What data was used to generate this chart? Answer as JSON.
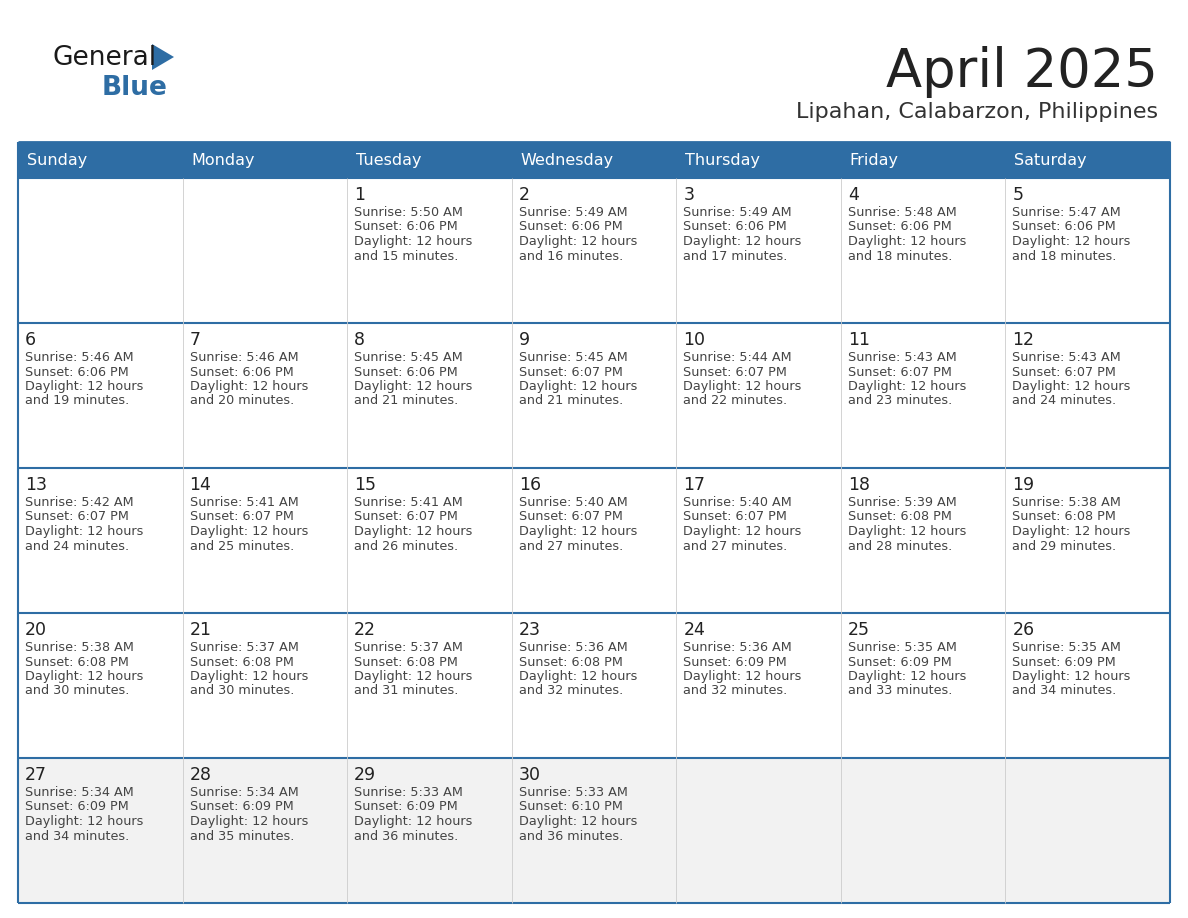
{
  "title": "April 2025",
  "subtitle": "Lipahan, Calabarzon, Philippines",
  "header_bg": "#2E6DA4",
  "header_text_color": "#FFFFFF",
  "cell_bg_white": "#FFFFFF",
  "cell_bg_gray": "#F0F0F0",
  "cell_border_color": "#2E6DA4",
  "day_number_color": "#222222",
  "cell_text_color": "#444444",
  "title_color": "#222222",
  "subtitle_color": "#333333",
  "days_of_week": [
    "Sunday",
    "Monday",
    "Tuesday",
    "Wednesday",
    "Thursday",
    "Friday",
    "Saturday"
  ],
  "row_bg": [
    "#FFFFFF",
    "#FFFFFF",
    "#FFFFFF",
    "#FFFFFF",
    "#F2F2F2"
  ],
  "weeks": [
    [
      {
        "day": "",
        "sunrise": "",
        "sunset": "",
        "daylight": ""
      },
      {
        "day": "",
        "sunrise": "",
        "sunset": "",
        "daylight": ""
      },
      {
        "day": "1",
        "sunrise": "5:50 AM",
        "sunset": "6:06 PM",
        "daylight": "and 15 minutes."
      },
      {
        "day": "2",
        "sunrise": "5:49 AM",
        "sunset": "6:06 PM",
        "daylight": "and 16 minutes."
      },
      {
        "day": "3",
        "sunrise": "5:49 AM",
        "sunset": "6:06 PM",
        "daylight": "and 17 minutes."
      },
      {
        "day": "4",
        "sunrise": "5:48 AM",
        "sunset": "6:06 PM",
        "daylight": "and 18 minutes."
      },
      {
        "day": "5",
        "sunrise": "5:47 AM",
        "sunset": "6:06 PM",
        "daylight": "and 18 minutes."
      }
    ],
    [
      {
        "day": "6",
        "sunrise": "5:46 AM",
        "sunset": "6:06 PM",
        "daylight": "and 19 minutes."
      },
      {
        "day": "7",
        "sunrise": "5:46 AM",
        "sunset": "6:06 PM",
        "daylight": "and 20 minutes."
      },
      {
        "day": "8",
        "sunrise": "5:45 AM",
        "sunset": "6:06 PM",
        "daylight": "and 21 minutes."
      },
      {
        "day": "9",
        "sunrise": "5:45 AM",
        "sunset": "6:07 PM",
        "daylight": "and 21 minutes."
      },
      {
        "day": "10",
        "sunrise": "5:44 AM",
        "sunset": "6:07 PM",
        "daylight": "and 22 minutes."
      },
      {
        "day": "11",
        "sunrise": "5:43 AM",
        "sunset": "6:07 PM",
        "daylight": "and 23 minutes."
      },
      {
        "day": "12",
        "sunrise": "5:43 AM",
        "sunset": "6:07 PM",
        "daylight": "and 24 minutes."
      }
    ],
    [
      {
        "day": "13",
        "sunrise": "5:42 AM",
        "sunset": "6:07 PM",
        "daylight": "and 24 minutes."
      },
      {
        "day": "14",
        "sunrise": "5:41 AM",
        "sunset": "6:07 PM",
        "daylight": "and 25 minutes."
      },
      {
        "day": "15",
        "sunrise": "5:41 AM",
        "sunset": "6:07 PM",
        "daylight": "and 26 minutes."
      },
      {
        "day": "16",
        "sunrise": "5:40 AM",
        "sunset": "6:07 PM",
        "daylight": "and 27 minutes."
      },
      {
        "day": "17",
        "sunrise": "5:40 AM",
        "sunset": "6:07 PM",
        "daylight": "and 27 minutes."
      },
      {
        "day": "18",
        "sunrise": "5:39 AM",
        "sunset": "6:08 PM",
        "daylight": "and 28 minutes."
      },
      {
        "day": "19",
        "sunrise": "5:38 AM",
        "sunset": "6:08 PM",
        "daylight": "and 29 minutes."
      }
    ],
    [
      {
        "day": "20",
        "sunrise": "5:38 AM",
        "sunset": "6:08 PM",
        "daylight": "and 30 minutes."
      },
      {
        "day": "21",
        "sunrise": "5:37 AM",
        "sunset": "6:08 PM",
        "daylight": "and 30 minutes."
      },
      {
        "day": "22",
        "sunrise": "5:37 AM",
        "sunset": "6:08 PM",
        "daylight": "and 31 minutes."
      },
      {
        "day": "23",
        "sunrise": "5:36 AM",
        "sunset": "6:08 PM",
        "daylight": "and 32 minutes."
      },
      {
        "day": "24",
        "sunrise": "5:36 AM",
        "sunset": "6:09 PM",
        "daylight": "and 32 minutes."
      },
      {
        "day": "25",
        "sunrise": "5:35 AM",
        "sunset": "6:09 PM",
        "daylight": "and 33 minutes."
      },
      {
        "day": "26",
        "sunrise": "5:35 AM",
        "sunset": "6:09 PM",
        "daylight": "and 34 minutes."
      }
    ],
    [
      {
        "day": "27",
        "sunrise": "5:34 AM",
        "sunset": "6:09 PM",
        "daylight": "and 34 minutes."
      },
      {
        "day": "28",
        "sunrise": "5:34 AM",
        "sunset": "6:09 PM",
        "daylight": "and 35 minutes."
      },
      {
        "day": "29",
        "sunrise": "5:33 AM",
        "sunset": "6:09 PM",
        "daylight": "and 36 minutes."
      },
      {
        "day": "30",
        "sunrise": "5:33 AM",
        "sunset": "6:10 PM",
        "daylight": "and 36 minutes."
      },
      {
        "day": "",
        "sunrise": "",
        "sunset": "",
        "daylight": ""
      },
      {
        "day": "",
        "sunrise": "",
        "sunset": "",
        "daylight": ""
      },
      {
        "day": "",
        "sunrise": "",
        "sunset": "",
        "daylight": ""
      }
    ]
  ],
  "logo_text1": "General",
  "logo_text2": "Blue",
  "logo_color1": "#1a1a1a",
  "logo_color2": "#2E6DA4",
  "logo_triangle_color": "#2E6DA4"
}
